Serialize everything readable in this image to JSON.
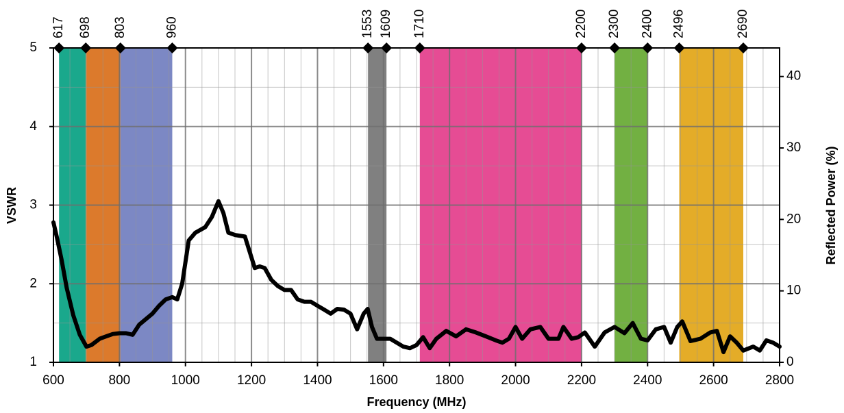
{
  "chart_data": {
    "type": "line",
    "x_label": "Frequency (MHz)",
    "y_label": "VSWR",
    "y2_label": "Reflected Power (%)",
    "x": [
      600,
      610,
      625,
      640,
      660,
      680,
      700,
      715,
      740,
      760,
      780,
      800,
      820,
      840,
      860,
      880,
      900,
      920,
      940,
      960,
      975,
      990,
      1010,
      1030,
      1060,
      1080,
      1100,
      1115,
      1130,
      1150,
      1180,
      1195,
      1210,
      1225,
      1240,
      1260,
      1280,
      1300,
      1320,
      1340,
      1360,
      1380,
      1400,
      1420,
      1440,
      1460,
      1480,
      1500,
      1520,
      1540,
      1552,
      1565,
      1580,
      1600,
      1620,
      1640,
      1660,
      1680,
      1700,
      1720,
      1740,
      1760,
      1790,
      1820,
      1850,
      1880,
      1910,
      1940,
      1960,
      1980,
      2000,
      2020,
      2045,
      2075,
      2100,
      2130,
      2145,
      2170,
      2190,
      2210,
      2240,
      2270,
      2300,
      2330,
      2355,
      2380,
      2400,
      2425,
      2450,
      2470,
      2490,
      2505,
      2530,
      2560,
      2590,
      2610,
      2630,
      2650,
      2670,
      2690,
      2720,
      2740,
      2760,
      2780,
      2800
    ],
    "values": [
      2.78,
      2.6,
      2.3,
      1.95,
      1.6,
      1.35,
      1.2,
      1.22,
      1.3,
      1.33,
      1.36,
      1.37,
      1.37,
      1.35,
      1.48,
      1.55,
      1.62,
      1.72,
      1.8,
      1.83,
      1.8,
      2.0,
      2.55,
      2.65,
      2.72,
      2.85,
      3.05,
      2.9,
      2.65,
      2.62,
      2.6,
      2.4,
      2.2,
      2.22,
      2.2,
      2.05,
      1.97,
      1.92,
      1.92,
      1.8,
      1.77,
      1.77,
      1.72,
      1.67,
      1.62,
      1.68,
      1.67,
      1.62,
      1.42,
      1.62,
      1.68,
      1.45,
      1.3,
      1.3,
      1.3,
      1.25,
      1.2,
      1.18,
      1.22,
      1.32,
      1.18,
      1.3,
      1.4,
      1.33,
      1.42,
      1.38,
      1.33,
      1.28,
      1.25,
      1.3,
      1.45,
      1.3,
      1.42,
      1.45,
      1.3,
      1.3,
      1.45,
      1.3,
      1.32,
      1.38,
      1.2,
      1.38,
      1.45,
      1.37,
      1.5,
      1.3,
      1.28,
      1.42,
      1.45,
      1.25,
      1.45,
      1.52,
      1.27,
      1.3,
      1.38,
      1.4,
      1.13,
      1.33,
      1.25,
      1.15,
      1.2,
      1.15,
      1.28,
      1.25,
      1.2
    ],
    "color": "#000000",
    "xlim": [
      600,
      2800
    ],
    "xticks": [
      600,
      800,
      1000,
      1200,
      1400,
      1600,
      1800,
      2000,
      2200,
      2400,
      2600,
      2800
    ],
    "ylim": [
      1,
      5
    ],
    "yticks": [
      1,
      2,
      3,
      4,
      5
    ],
    "y2lim": [
      0,
      44
    ],
    "y2ticks": [
      0,
      10,
      20,
      30,
      40
    ],
    "grid": true,
    "x_minor_divisions": 4,
    "y_minor_divisions": 2,
    "markers": [
      617,
      698,
      803,
      960,
      1553,
      1609,
      1710,
      2200,
      2300,
      2400,
      2496,
      2690
    ],
    "bands": [
      {
        "start": 617,
        "end": 698,
        "color": "#1aa88c"
      },
      {
        "start": 698,
        "end": 803,
        "color": "#dc7a2c"
      },
      {
        "start": 803,
        "end": 960,
        "color": "#7c88c4"
      },
      {
        "start": 1553,
        "end": 1609,
        "color": "#808080"
      },
      {
        "start": 1710,
        "end": 2200,
        "color": "#e64c94"
      },
      {
        "start": 2300,
        "end": 2400,
        "color": "#72b042"
      },
      {
        "start": 2496,
        "end": 2690,
        "color": "#e4ac28"
      }
    ]
  }
}
